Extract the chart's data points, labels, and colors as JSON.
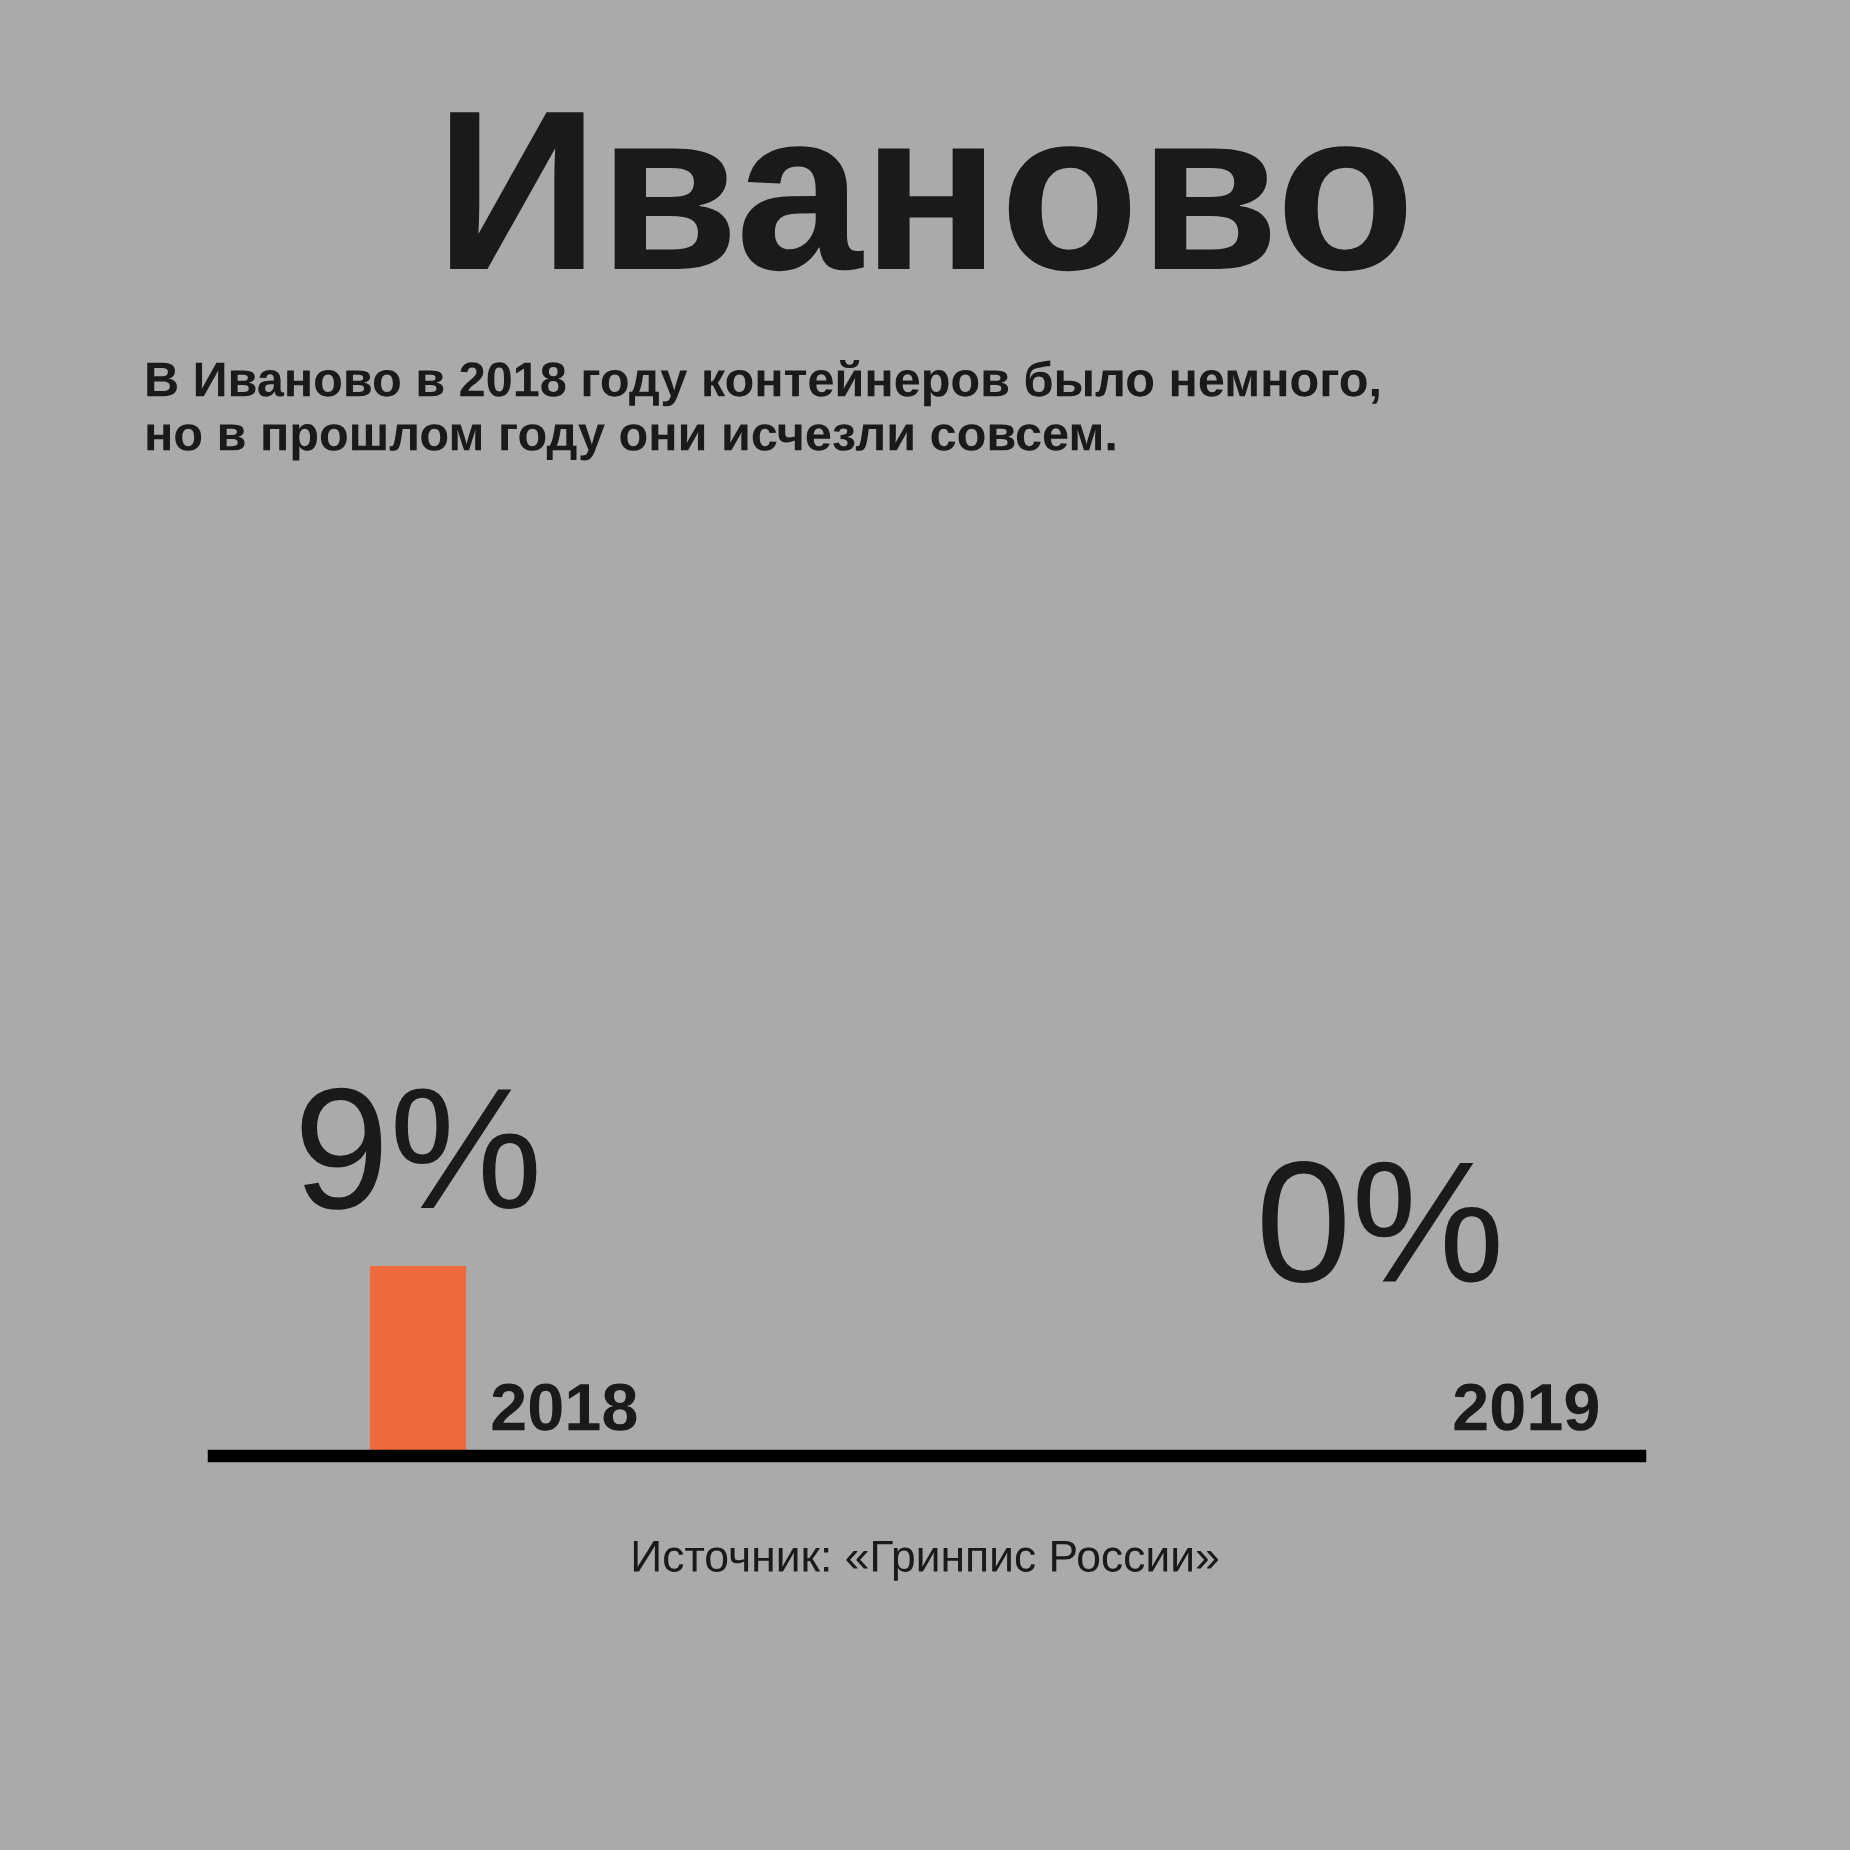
{
  "chart_data": {
    "type": "bar",
    "title": "Иваново",
    "subtitle": "В Иваново в 2018 году контейнеров было немного,\nно в прошлом году они исчезли совсем.",
    "categories": [
      "2018",
      "2019"
    ],
    "values": [
      9,
      0
    ],
    "value_labels": [
      "9%",
      "0%"
    ],
    "color": "#ee6a3c",
    "annotations": [
      "Источник: «Гринпис России»"
    ]
  }
}
